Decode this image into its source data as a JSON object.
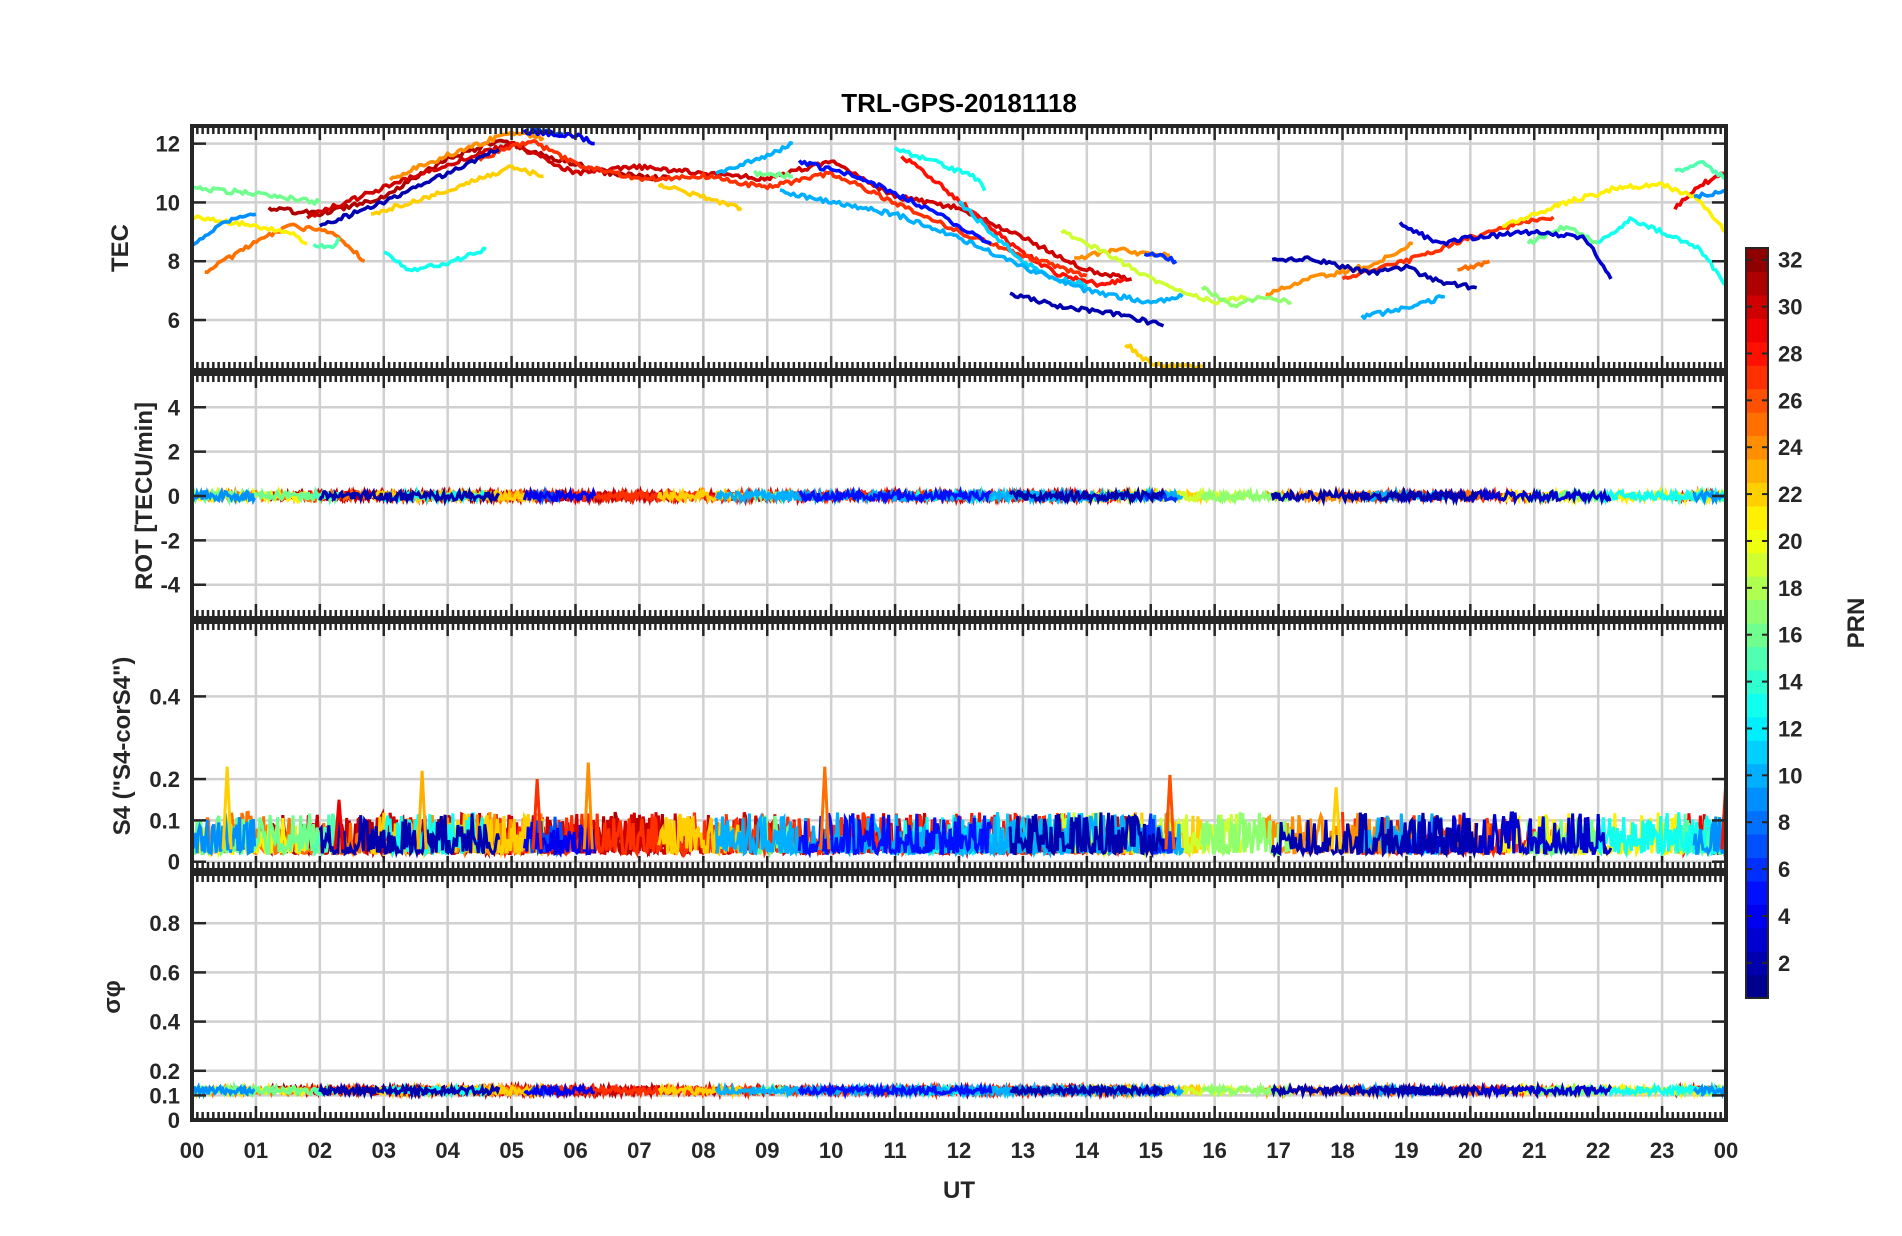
{
  "chart_data": {
    "type": "line",
    "title": "TRL-GPS-20181118",
    "xlabel": "UT",
    "x_tick_labels": [
      "00",
      "01",
      "02",
      "03",
      "04",
      "05",
      "06",
      "07",
      "08",
      "09",
      "10",
      "11",
      "12",
      "13",
      "14",
      "15",
      "16",
      "17",
      "18",
      "19",
      "20",
      "21",
      "22",
      "23",
      "00"
    ],
    "xlim_hours": [
      0,
      24
    ],
    "colorbar": {
      "label": "PRN",
      "range": [
        1,
        32
      ],
      "tick_labels": [
        "2",
        "4",
        "6",
        "8",
        "10",
        "12",
        "14",
        "16",
        "18",
        "20",
        "22",
        "24",
        "26",
        "28",
        "30",
        "32"
      ],
      "colormap": "jet"
    },
    "panels": [
      {
        "name": "tec",
        "ylabel": "TEC",
        "ylim": [
          4.3,
          12.6
        ],
        "y_ticks": [
          6,
          8,
          10,
          12
        ],
        "y_tick_labels": [
          "6",
          "8",
          "10",
          "12"
        ],
        "series": [
          {
            "prn": 31,
            "points": [
              [
                1.2,
                9.8
              ],
              [
                2,
                9.6
              ],
              [
                3,
                10.2
              ],
              [
                4,
                11.5
              ],
              [
                4.8,
                12.1
              ],
              [
                5.5,
                11.6
              ],
              [
                6.5,
                11.0
              ],
              [
                7.5,
                10.8
              ]
            ]
          },
          {
            "prn": 30,
            "points": [
              [
                1.8,
                9.5
              ],
              [
                3,
                10.5
              ],
              [
                4,
                11.3
              ],
              [
                5,
                12.0
              ],
              [
                6,
                11.0
              ],
              [
                7,
                11.2
              ],
              [
                8,
                11.0
              ],
              [
                9,
                10.8
              ],
              [
                10,
                11.4
              ],
              [
                11,
                10.2
              ],
              [
                12,
                9.8
              ],
              [
                13,
                8.8
              ],
              [
                14,
                7.7
              ],
              [
                14.7,
                7.4
              ]
            ]
          },
          {
            "prn": 28,
            "points": [
              [
                11.1,
                11.6
              ],
              [
                11.6,
                10.8
              ],
              [
                12.3,
                9.5
              ],
              [
                12.8,
                8.6
              ],
              [
                13.5,
                7.6
              ],
              [
                14.2,
                7.2
              ],
              [
                14.6,
                7.4
              ]
            ]
          },
          {
            "prn": 27,
            "points": [
              [
                4.5,
                11.5
              ],
              [
                5.3,
                12.1
              ],
              [
                6,
                11.3
              ],
              [
                7,
                10.8
              ],
              [
                8,
                10.9
              ],
              [
                9,
                10.5
              ],
              [
                10,
                11.0
              ],
              [
                11,
                10.0
              ],
              [
                12,
                9.0
              ],
              [
                13,
                8.2
              ],
              [
                14,
                7.5
              ]
            ]
          },
          {
            "prn": 27,
            "points": [
              [
                18,
                7.4
              ],
              [
                19,
                8.0
              ],
              [
                20,
                8.8
              ],
              [
                21,
                9.4
              ],
              [
                21.3,
                9.5
              ]
            ]
          },
          {
            "prn": 29,
            "points": [
              [
                23.2,
                9.8
              ],
              [
                23.6,
                10.6
              ],
              [
                24,
                11.0
              ]
            ]
          },
          {
            "prn": 25,
            "points": [
              [
                0.2,
                7.6
              ],
              [
                0.8,
                8.4
              ],
              [
                1.5,
                9.2
              ],
              [
                2.2,
                9.0
              ],
              [
                2.7,
                8.0
              ]
            ]
          },
          {
            "prn": 24,
            "points": [
              [
                3.1,
                10.8
              ],
              [
                4,
                11.6
              ],
              [
                5,
                12.4
              ],
              [
                5.5,
                12.2
              ]
            ]
          },
          {
            "prn": 24,
            "points": [
              [
                13.8,
                8.1
              ],
              [
                14.5,
                8.4
              ],
              [
                15,
                8.2
              ],
              [
                15.3,
                8.2
              ]
            ]
          },
          {
            "prn": 24,
            "points": [
              [
                16.8,
                6.9
              ],
              [
                17.5,
                7.4
              ],
              [
                18.5,
                7.9
              ],
              [
                19.1,
                8.6
              ]
            ]
          },
          {
            "prn": 25,
            "points": [
              [
                19.8,
                7.7
              ],
              [
                20.3,
                8.0
              ]
            ]
          },
          {
            "prn": 22,
            "points": [
              [
                2.8,
                9.6
              ],
              [
                4,
                10.4
              ],
              [
                5,
                11.2
              ],
              [
                5.5,
                10.9
              ]
            ]
          },
          {
            "prn": 22,
            "points": [
              [
                7.3,
                10.6
              ],
              [
                8,
                10.2
              ],
              [
                8.6,
                9.8
              ]
            ]
          },
          {
            "prn": 22,
            "points": [
              [
                14.6,
                5.2
              ],
              [
                15,
                4.5
              ],
              [
                15.8,
                4.4
              ]
            ]
          },
          {
            "prn": 21,
            "points": [
              [
                0,
                9.5
              ],
              [
                0.7,
                9.3
              ],
              [
                1.5,
                9.0
              ],
              [
                1.8,
                8.6
              ]
            ]
          },
          {
            "prn": 21,
            "points": [
              [
                20.5,
                9.2
              ],
              [
                21.5,
                10.0
              ],
              [
                22.3,
                10.5
              ],
              [
                23,
                10.6
              ],
              [
                23.5,
                10.2
              ],
              [
                24,
                9.0
              ]
            ]
          },
          {
            "prn": 19,
            "points": [
              [
                13.6,
                9.0
              ],
              [
                14.2,
                8.4
              ],
              [
                15,
                7.4
              ],
              [
                15.5,
                7.0
              ],
              [
                16,
                6.6
              ],
              [
                16.5,
                6.8
              ]
            ]
          },
          {
            "prn": 17,
            "points": [
              [
                15.8,
                7.1
              ],
              [
                16.3,
                6.5
              ],
              [
                16.8,
                6.8
              ],
              [
                17.2,
                6.6
              ]
            ]
          },
          {
            "prn": 16,
            "points": [
              [
                0,
                10.5
              ],
              [
                1,
                10.3
              ],
              [
                2,
                10.0
              ]
            ]
          },
          {
            "prn": 16,
            "points": [
              [
                8.8,
                11.0
              ],
              [
                9.4,
                10.9
              ]
            ]
          },
          {
            "prn": 16,
            "points": [
              [
                20.9,
                8.6
              ],
              [
                21.5,
                9.2
              ],
              [
                22,
                8.6
              ]
            ]
          },
          {
            "prn": 15,
            "points": [
              [
                1.9,
                8.6
              ],
              [
                2.2,
                8.4
              ],
              [
                2.3,
                8.8
              ]
            ]
          },
          {
            "prn": 15,
            "points": [
              [
                23.2,
                11.0
              ],
              [
                23.6,
                11.4
              ],
              [
                24,
                10.8
              ]
            ]
          },
          {
            "prn": 13,
            "points": [
              [
                11.0,
                11.8
              ],
              [
                11.6,
                11.4
              ],
              [
                12.3,
                10.8
              ],
              [
                12.4,
                10.4
              ]
            ]
          },
          {
            "prn": 13,
            "points": [
              [
                3,
                8.3
              ],
              [
                3.4,
                7.7
              ],
              [
                4,
                7.9
              ],
              [
                4.4,
                8.3
              ],
              [
                4.6,
                8.4
              ]
            ]
          },
          {
            "prn": 13,
            "points": [
              [
                22,
                8.6
              ],
              [
                22.5,
                9.4
              ],
              [
                23,
                9.0
              ],
              [
                23.6,
                8.4
              ],
              [
                24,
                7.2
              ]
            ]
          },
          {
            "prn": 11,
            "points": [
              [
                12,
                10.0
              ],
              [
                12.5,
                9.0
              ],
              [
                13,
                8.0
              ],
              [
                13.5,
                7.4
              ],
              [
                14,
                7.2
              ]
            ]
          },
          {
            "prn": 10,
            "points": [
              [
                8.2,
                11.0
              ],
              [
                9,
                11.6
              ],
              [
                9.4,
                12.0
              ]
            ]
          },
          {
            "prn": 10,
            "points": [
              [
                9.2,
                10.4
              ],
              [
                10,
                10.0
              ],
              [
                11,
                9.6
              ],
              [
                12,
                8.8
              ],
              [
                13,
                7.8
              ],
              [
                14,
                7.0
              ],
              [
                15,
                6.6
              ],
              [
                15.5,
                6.8
              ]
            ]
          },
          {
            "prn": 10,
            "points": [
              [
                18.3,
                6.1
              ],
              [
                19,
                6.4
              ],
              [
                19.6,
                6.8
              ]
            ]
          },
          {
            "prn": 9,
            "points": [
              [
                0,
                8.6
              ],
              [
                0.5,
                9.3
              ],
              [
                1,
                9.6
              ]
            ]
          },
          {
            "prn": 9,
            "points": [
              [
                23.5,
                10.2
              ],
              [
                24,
                10.4
              ]
            ]
          },
          {
            "prn": 7,
            "points": [
              [
                5.3,
                12.5
              ],
              [
                5.8,
                12.3
              ]
            ]
          },
          {
            "prn": 6,
            "points": [
              [
                14.9,
                8.3
              ],
              [
                15.4,
                8.0
              ]
            ]
          },
          {
            "prn": 5,
            "points": [
              [
                9.5,
                11.4
              ],
              [
                10.5,
                10.8
              ],
              [
                11.5,
                9.8
              ],
              [
                12.5,
                8.6
              ]
            ]
          },
          {
            "prn": 4,
            "points": [
              [
                5.2,
                12.4
              ],
              [
                6,
                12.3
              ],
              [
                6.3,
                12.0
              ]
            ]
          },
          {
            "prn": 3,
            "points": [
              [
                18.9,
                9.3
              ],
              [
                19.5,
                8.6
              ],
              [
                20,
                8.8
              ],
              [
                21,
                9.0
              ],
              [
                21.8,
                8.8
              ],
              [
                22.2,
                7.4
              ]
            ]
          },
          {
            "prn": 2,
            "points": [
              [
                2,
                9.2
              ],
              [
                3,
                10.0
              ],
              [
                4,
                11.0
              ],
              [
                4.8,
                11.8
              ]
            ]
          },
          {
            "prn": 2,
            "points": [
              [
                12.8,
                6.9
              ],
              [
                13.5,
                6.5
              ],
              [
                14.5,
                6.2
              ],
              [
                15.2,
                5.8
              ]
            ]
          },
          {
            "prn": 2,
            "points": [
              [
                16.9,
                8.0
              ],
              [
                17.5,
                8.1
              ],
              [
                18,
                7.8
              ],
              [
                18.5,
                7.6
              ],
              [
                19,
                7.8
              ],
              [
                19.5,
                7.3
              ],
              [
                20.1,
                7.1
              ]
            ]
          }
        ]
      },
      {
        "name": "rot",
        "ylabel": "ROT [TECU/min]",
        "ylim": [
          -5.5,
          5.5
        ],
        "y_ticks": [
          -4,
          -2,
          0,
          2,
          4
        ],
        "y_tick_labels": [
          "-4",
          "-2",
          "0",
          "2",
          "4"
        ]
      },
      {
        "name": "s4",
        "ylabel": "S4 (\"S4-corS4\")",
        "ylim": [
          -0.02,
          0.58
        ],
        "y_ticks": [
          0,
          0.1,
          0.2,
          0.4
        ],
        "y_tick_labels": [
          "0",
          "0.1",
          "0.2",
          "0.4"
        ],
        "max_spikes": [
          [
            0.55,
            0.23
          ],
          [
            3.6,
            0.22
          ],
          [
            6.2,
            0.24
          ],
          [
            9.9,
            0.23
          ],
          [
            15.3,
            0.21
          ],
          [
            5.4,
            0.2
          ],
          [
            24,
            0.2
          ],
          [
            2.3,
            0.15
          ],
          [
            17.9,
            0.18
          ]
        ]
      },
      {
        "name": "sigma_phi",
        "ylabel": "σφ",
        "ylim": [
          0,
          1.0
        ],
        "y_ticks": [
          0,
          0.1,
          0.2,
          0.4,
          0.6,
          0.8
        ],
        "y_tick_labels": [
          "0",
          "0.1",
          "0.2",
          "0.4",
          "0.6",
          "0.8"
        ],
        "typical_value": 0.12
      }
    ]
  }
}
